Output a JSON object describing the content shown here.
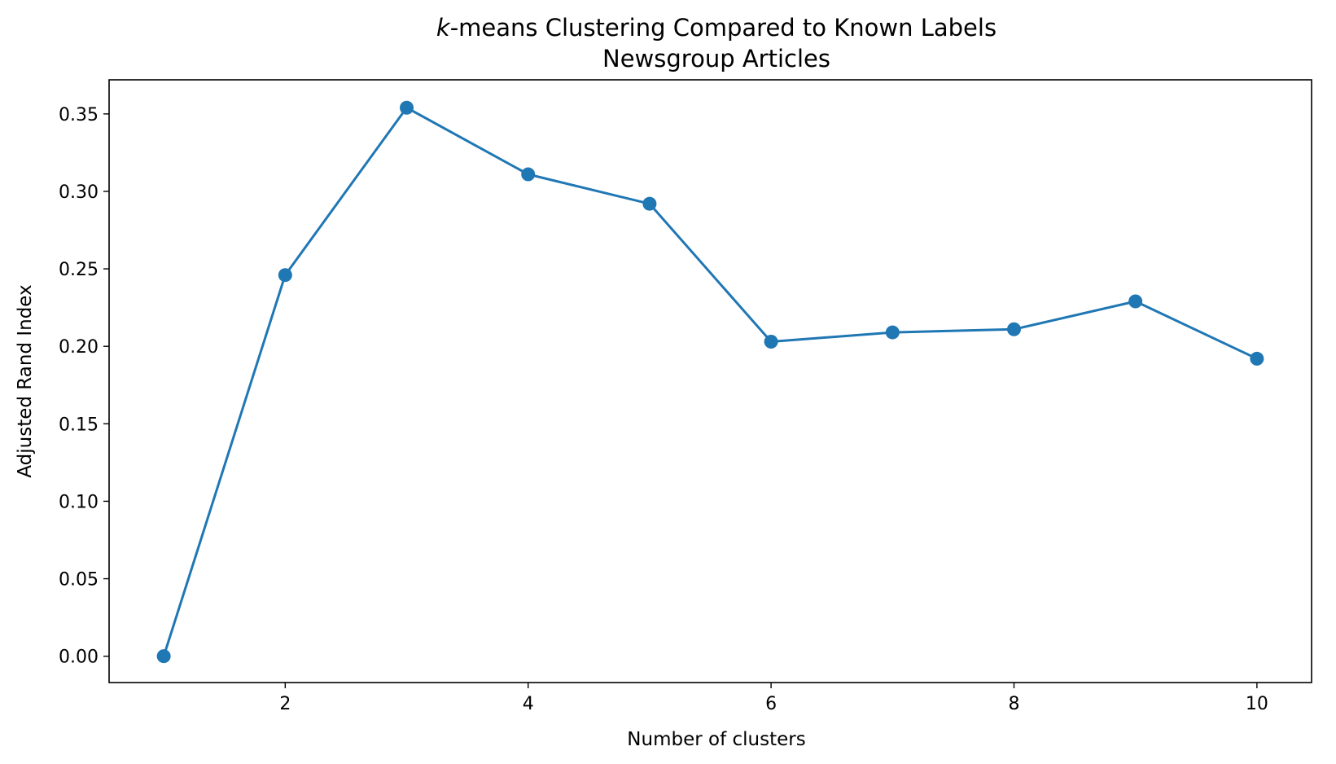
{
  "chart_data": {
    "type": "line",
    "title_italic": "k",
    "title_rest": "-means Clustering Compared to Known Labels",
    "subtitle": "Newsgroup Articles",
    "xlabel": "Number of clusters",
    "ylabel": "Adjusted Rand Index",
    "xlim": [
      0.55,
      10.45
    ],
    "ylim": [
      -0.017,
      0.372
    ],
    "xticks": [
      2,
      4,
      6,
      8,
      10
    ],
    "xtick_labels": [
      "2",
      "4",
      "6",
      "8",
      "10"
    ],
    "yticks": [
      0.0,
      0.05,
      0.1,
      0.15,
      0.2,
      0.25,
      0.3,
      0.35
    ],
    "ytick_labels": [
      "0.00",
      "0.05",
      "0.10",
      "0.15",
      "0.20",
      "0.25",
      "0.30",
      "0.35"
    ],
    "grid": false,
    "color": "#1f77b4",
    "series": [
      {
        "x": [
          1,
          2,
          3,
          4,
          5,
          6,
          7,
          8,
          9,
          10
        ],
        "values": [
          0.0,
          0.246,
          0.354,
          0.311,
          0.292,
          0.203,
          0.209,
          0.211,
          0.229,
          0.192
        ]
      }
    ]
  }
}
